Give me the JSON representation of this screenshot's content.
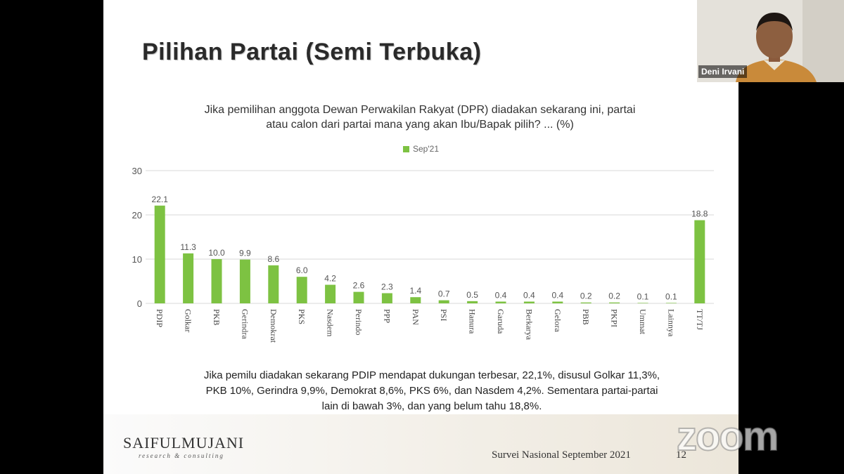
{
  "slide": {
    "title": "Pilihan Partai (Semi Terbuka)",
    "question_line1": "Jika pemilihan anggota Dewan Perwakilan Rakyat (DPR) diadakan sekarang ini, partai",
    "question_line2": "atau calon dari partai mana yang akan Ibu/Bapak pilih?  ... (%)",
    "summary_line1": "Jika pemilu diadakan sekarang PDIP mendapat dukungan terbesar, 22,1%, disusul Golkar 11,3%,",
    "summary_line2": "PKB 10%, Gerindra 9,9%, Demokrat 8,6%, PKS 6%, dan Nasdem 4,2%. Sementara partai-partai",
    "summary_line3": "lain di bawah 3%, dan yang belum tahu 18,8%.",
    "brand": "SAIFULMUJANI",
    "brand_sub": "research & consulting",
    "footer": "Survei Nasional September 2021",
    "page_number": "12"
  },
  "video": {
    "participant_name": "Deni Irvani",
    "zoom_logo": "zoom"
  },
  "chart_data": {
    "type": "bar",
    "legend": "top-center",
    "grid": true,
    "ylim": [
      0,
      30
    ],
    "yticks": [
      "0",
      "10",
      "20",
      "30"
    ],
    "bar_color": "#7dc242",
    "categories": [
      "PDIP",
      "Golkar",
      "PKB",
      "Gerindra",
      "Demokrat",
      "PKS",
      "Nasdem",
      "Perindo",
      "PPP",
      "PAN",
      "PSI",
      "Hanura",
      "Garuda",
      "Berkarya",
      "Gelora",
      "PBB",
      "PKPI",
      "Ummat",
      "Lainnya",
      "TT/TJ"
    ],
    "series": [
      {
        "name": "Sep'21",
        "values": [
          22.1,
          11.3,
          10.0,
          9.9,
          8.6,
          6.0,
          4.2,
          2.6,
          2.3,
          1.4,
          0.7,
          0.5,
          0.4,
          0.4,
          0.4,
          0.2,
          0.2,
          0.1,
          0.1,
          18.8
        ],
        "labels": [
          "22.1",
          "11.3",
          "10.0",
          "9.9",
          "8.6",
          "6.0",
          "4.2",
          "2.6",
          "2.3",
          "1.4",
          "0.7",
          "0.5",
          "0.4",
          "0.4",
          "0.4",
          "0.2",
          "0.2",
          "0.1",
          "0.1",
          "18.8"
        ]
      }
    ]
  }
}
